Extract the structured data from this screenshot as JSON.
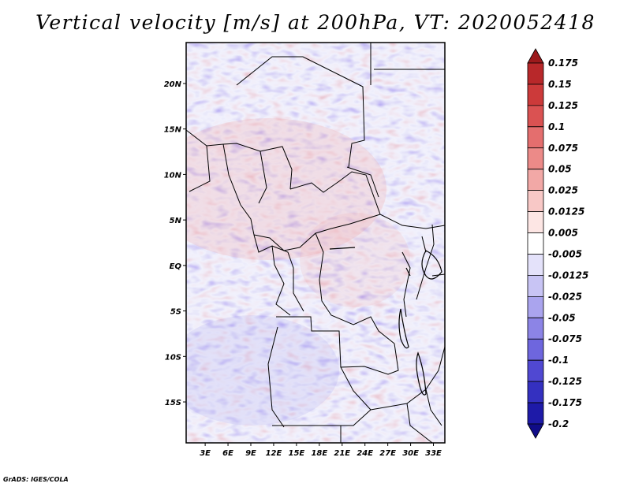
{
  "title": "Vertical velocity [m/s] at 200hPa, VT: 2020052418",
  "credit": "GrADS: IGES/COLA",
  "map": {
    "lat_labels": [
      "20N",
      "15N",
      "10N",
      "5N",
      "EQ",
      "5S",
      "10S",
      "15S"
    ],
    "lat_values": [
      20,
      15,
      10,
      5,
      0,
      -5,
      -10,
      -15
    ],
    "lon_labels": [
      "3E",
      "6E",
      "9E",
      "12E",
      "15E",
      "18E",
      "21E",
      "24E",
      "27E",
      "30E",
      "33E"
    ],
    "lon_values": [
      3,
      6,
      9,
      12,
      15,
      18,
      21,
      24,
      27,
      30,
      33
    ],
    "lon_range": [
      0.5,
      34.5
    ],
    "lat_range": [
      -19.5,
      24.5
    ]
  },
  "colorbar": {
    "labels": [
      "0.175",
      "0.15",
      "0.125",
      "0.1",
      "0.075",
      "0.05",
      "0.025",
      "0.0125",
      "0.005",
      "-0.005",
      "-0.0125",
      "-0.025",
      "-0.05",
      "-0.075",
      "-0.1",
      "-0.125",
      "-0.175",
      "-0.2"
    ],
    "colors": [
      "#9c1a1c",
      "#b8282a",
      "#cc3a3a",
      "#da5252",
      "#e46e6e",
      "#ec8a88",
      "#f2a8a6",
      "#f8c8c6",
      "#fde6e4",
      "#ffffff",
      "#e4e2fa",
      "#c8c4f4",
      "#aaa4ee",
      "#8c84e6",
      "#6e66de",
      "#5048d2",
      "#3430c0",
      "#1e1aa8",
      "#100c88"
    ]
  }
}
